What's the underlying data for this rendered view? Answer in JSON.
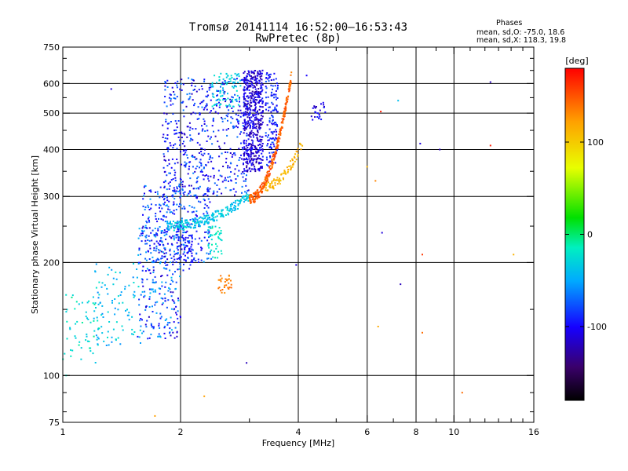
{
  "chart_data": {
    "type": "scatter",
    "title": "Tromsø 20141114 16:52:00–16:53:43",
    "subtitle": "RwPretec (8p)",
    "xlabel": "Frequency [MHz]",
    "ylabel": "Stationary phase Virtual Height [km]",
    "xscale": "log",
    "yscale": "log",
    "xlim": [
      1,
      16
    ],
    "ylim": [
      75,
      750
    ],
    "x_ticks": [
      {
        "value": 1,
        "label": "1"
      },
      {
        "value": 2,
        "label": "2"
      },
      {
        "value": 4,
        "label": "4"
      },
      {
        "value": 6,
        "label": "6"
      },
      {
        "value": 8,
        "label": "8"
      },
      {
        "value": 10,
        "label": "10"
      },
      {
        "value": 16,
        "label": "16"
      }
    ],
    "x_grid": [
      2,
      4,
      6,
      8,
      10
    ],
    "y_ticks": [
      {
        "value": 75,
        "label": "75"
      },
      {
        "value": 100,
        "label": "100"
      },
      {
        "value": 200,
        "label": "200"
      },
      {
        "value": 300,
        "label": "300"
      },
      {
        "value": 400,
        "label": "400"
      },
      {
        "value": 500,
        "label": "500"
      },
      {
        "value": 600,
        "label": "600"
      },
      {
        "value": 750,
        "label": "750"
      }
    ],
    "y_grid": [
      100,
      200,
      300,
      400,
      500,
      600
    ],
    "grid": true,
    "colorbar": {
      "label": "[deg]",
      "range": [
        -180,
        180
      ],
      "ticks": [
        {
          "value": 100,
          "label": "100"
        },
        {
          "value": 0,
          "label": "0"
        },
        {
          "value": -100,
          "label": "-100"
        }
      ]
    },
    "annotation": {
      "header": "Phases",
      "line1": "mean, sd,O: -75.0, 18.6",
      "line2": "mean, sd,X: 118.3, 19.8"
    },
    "clusters": [
      {
        "kind": "rect",
        "x": [
          1.0,
          1.25
        ],
        "h": [
          108,
          165
        ],
        "phase": [
          -40,
          -10
        ],
        "count": 60
      },
      {
        "kind": "rect",
        "x": [
          1.2,
          1.6
        ],
        "h": [
          120,
          200
        ],
        "phase": [
          -60,
          -20
        ],
        "count": 90
      },
      {
        "kind": "rect",
        "x": [
          1.55,
          2.0
        ],
        "h": [
          125,
          250
        ],
        "phase": [
          -120,
          -40
        ],
        "count": 260
      },
      {
        "kind": "rect",
        "x": [
          1.6,
          2.4
        ],
        "h": [
          200,
          320
        ],
        "phase": [
          -110,
          -50
        ],
        "count": 320
      },
      {
        "kind": "rect",
        "x": [
          1.8,
          3.0
        ],
        "h": [
          300,
          620
        ],
        "phase": [
          -120,
          -60
        ],
        "count": 520
      },
      {
        "kind": "rect",
        "x": [
          1.95,
          2.15
        ],
        "h": [
          190,
          260
        ],
        "phase": [
          -110,
          -80
        ],
        "count": 60
      },
      {
        "kind": "rect",
        "x": [
          2.35,
          2.55
        ],
        "h": [
          205,
          250
        ],
        "phase": [
          -30,
          -10
        ],
        "count": 40
      },
      {
        "kind": "rect",
        "x": [
          2.5,
          2.7
        ],
        "h": [
          165,
          185
        ],
        "phase": [
          125,
          140
        ],
        "count": 30
      },
      {
        "kind": "rect",
        "x": [
          2.4,
          2.85
        ],
        "h": [
          520,
          640
        ],
        "phase": [
          -40,
          -20
        ],
        "count": 80
      },
      {
        "kind": "rect",
        "x": [
          2.9,
          3.25
        ],
        "h": [
          350,
          650
        ],
        "phase": [
          -130,
          -90
        ],
        "count": 500
      },
      {
        "kind": "rect",
        "x": [
          3.3,
          3.55
        ],
        "h": [
          360,
          640
        ],
        "phase": [
          -110,
          -70
        ],
        "count": 140
      },
      {
        "kind": "arc",
        "x": [
          1.85,
          3.0
        ],
        "h": [
          250,
          300
        ],
        "phase": [
          -50,
          -20
        ],
        "count": 220
      },
      {
        "kind": "arc",
        "x": [
          3.0,
          3.85
        ],
        "h": [
          295,
          640
        ],
        "phase": [
          130,
          160
        ],
        "count": 260
      },
      {
        "kind": "arc",
        "x": [
          3.3,
          4.1
        ],
        "h": [
          320,
          420
        ],
        "phase": [
          100,
          120
        ],
        "count": 80
      },
      {
        "kind": "rect",
        "x": [
          4.3,
          4.7
        ],
        "h": [
          480,
          540
        ],
        "phase": [
          -120,
          -90
        ],
        "count": 25
      }
    ],
    "isolated_points": [
      {
        "x": 1.33,
        "h": 580,
        "phase": -110
      },
      {
        "x": 1.02,
        "h": 100,
        "phase": -20
      },
      {
        "x": 1.72,
        "h": 78,
        "phase": 120
      },
      {
        "x": 2.3,
        "h": 88,
        "phase": 120
      },
      {
        "x": 2.95,
        "h": 108,
        "phase": -120
      },
      {
        "x": 3.95,
        "h": 197,
        "phase": -110
      },
      {
        "x": 4.2,
        "h": 630,
        "phase": -100
      },
      {
        "x": 6.0,
        "h": 360,
        "phase": 110
      },
      {
        "x": 6.3,
        "h": 330,
        "phase": 130
      },
      {
        "x": 6.5,
        "h": 505,
        "phase": 170
      },
      {
        "x": 6.55,
        "h": 240,
        "phase": -110
      },
      {
        "x": 6.4,
        "h": 135,
        "phase": 115
      },
      {
        "x": 7.2,
        "h": 540,
        "phase": -40
      },
      {
        "x": 7.3,
        "h": 175,
        "phase": -120
      },
      {
        "x": 8.2,
        "h": 415,
        "phase": -110
      },
      {
        "x": 8.3,
        "h": 210,
        "phase": 160
      },
      {
        "x": 8.3,
        "h": 130,
        "phase": 140
      },
      {
        "x": 9.2,
        "h": 400,
        "phase": -120
      },
      {
        "x": 10.5,
        "h": 90,
        "phase": 140
      },
      {
        "x": 12.4,
        "h": 605,
        "phase": -120
      },
      {
        "x": 12.4,
        "h": 410,
        "phase": 170
      },
      {
        "x": 14.2,
        "h": 210,
        "phase": 110
      }
    ]
  }
}
